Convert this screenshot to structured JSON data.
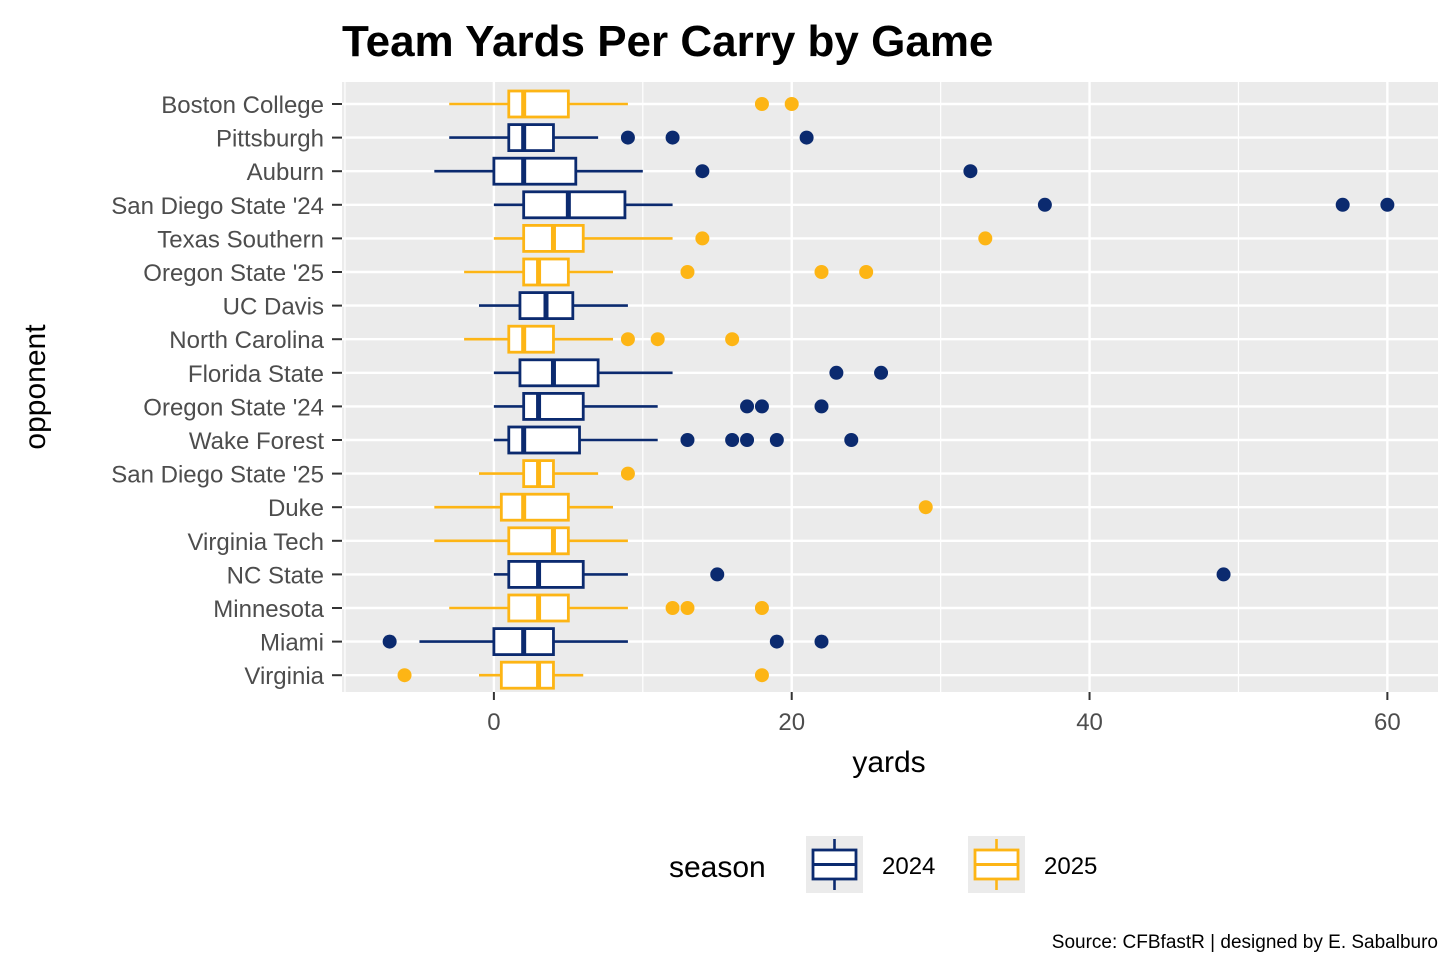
{
  "chart_data": {
    "type": "boxplot",
    "title": "Team Yards Per Carry by Game",
    "xlabel": "yards",
    "ylabel": "opponent",
    "xlim": [
      -10.2,
      63.4
    ],
    "x_ticks": [
      0,
      20,
      40,
      60
    ],
    "grid": true,
    "legend": {
      "title": "season",
      "placement": "bottom",
      "entries": [
        "2024",
        "2025"
      ]
    },
    "colors": {
      "2024": "#0B2A6F",
      "2025": "#FDB515",
      "panel": "#EBEBEB"
    },
    "caption": "Source: CFBfastR | designed by E. Sabalburo",
    "rows": [
      {
        "opponent": "Boston College",
        "season": "2025",
        "whisker_low": -3,
        "q1": 1,
        "median": 2,
        "q3": 5,
        "whisker_high": 9,
        "outliers": [
          18,
          20
        ]
      },
      {
        "opponent": "Pittsburgh",
        "season": "2024",
        "whisker_low": -3,
        "q1": 1,
        "median": 2,
        "q3": 4,
        "whisker_high": 7,
        "outliers": [
          9,
          12,
          21
        ]
      },
      {
        "opponent": "Auburn",
        "season": "2024",
        "whisker_low": -4,
        "q1": 0,
        "median": 2,
        "q3": 5.5,
        "whisker_high": 10,
        "outliers": [
          14,
          32
        ]
      },
      {
        "opponent": "San Diego State '24",
        "season": "2024",
        "whisker_low": 0,
        "q1": 2,
        "median": 5,
        "q3": 8.8,
        "whisker_high": 12,
        "outliers": [
          37,
          57,
          60
        ]
      },
      {
        "opponent": "Texas Southern",
        "season": "2025",
        "whisker_low": 0,
        "q1": 2,
        "median": 4,
        "q3": 6,
        "whisker_high": 12,
        "outliers": [
          14,
          33
        ]
      },
      {
        "opponent": "Oregon State '25",
        "season": "2025",
        "whisker_low": -2,
        "q1": 2,
        "median": 3,
        "q3": 5,
        "whisker_high": 8,
        "outliers": [
          13,
          22,
          25
        ]
      },
      {
        "opponent": "UC Davis",
        "season": "2024",
        "whisker_low": -1,
        "q1": 1.75,
        "median": 3.5,
        "q3": 5.3,
        "whisker_high": 9,
        "outliers": []
      },
      {
        "opponent": "North Carolina",
        "season": "2025",
        "whisker_low": -2,
        "q1": 1,
        "median": 2,
        "q3": 4,
        "whisker_high": 8,
        "outliers": [
          9,
          11,
          16
        ]
      },
      {
        "opponent": "Florida State",
        "season": "2024",
        "whisker_low": 0,
        "q1": 1.75,
        "median": 4,
        "q3": 7,
        "whisker_high": 12,
        "outliers": [
          23,
          26
        ]
      },
      {
        "opponent": "Oregon State '24",
        "season": "2024",
        "whisker_low": 0,
        "q1": 2,
        "median": 3,
        "q3": 6,
        "whisker_high": 11,
        "outliers": [
          17,
          18,
          22
        ]
      },
      {
        "opponent": "Wake Forest",
        "season": "2024",
        "whisker_low": 0,
        "q1": 1,
        "median": 2,
        "q3": 5.75,
        "whisker_high": 11,
        "outliers": [
          13,
          16,
          17,
          19,
          24
        ]
      },
      {
        "opponent": "San Diego State '25",
        "season": "2025",
        "whisker_low": -1,
        "q1": 2,
        "median": 3,
        "q3": 4,
        "whisker_high": 7,
        "outliers": [
          9
        ]
      },
      {
        "opponent": "Duke",
        "season": "2025",
        "whisker_low": -4,
        "q1": 0.5,
        "median": 2,
        "q3": 5,
        "whisker_high": 8,
        "outliers": [
          29
        ]
      },
      {
        "opponent": "Virginia Tech",
        "season": "2025",
        "whisker_low": -4,
        "q1": 1,
        "median": 4,
        "q3": 5,
        "whisker_high": 9,
        "outliers": []
      },
      {
        "opponent": "NC State",
        "season": "2024",
        "whisker_low": 0,
        "q1": 1,
        "median": 3,
        "q3": 6,
        "whisker_high": 9,
        "outliers": [
          15,
          49
        ]
      },
      {
        "opponent": "Minnesota",
        "season": "2025",
        "whisker_low": -3,
        "q1": 1,
        "median": 3,
        "q3": 5,
        "whisker_high": 9,
        "outliers": [
          12,
          13,
          18
        ]
      },
      {
        "opponent": "Miami",
        "season": "2024",
        "whisker_low": -5,
        "q1": 0,
        "median": 2,
        "q3": 4,
        "whisker_high": 9,
        "outliers": [
          -7,
          19,
          22
        ]
      },
      {
        "opponent": "Virginia",
        "season": "2025",
        "whisker_low": -1,
        "q1": 0.5,
        "median": 3,
        "q3": 4,
        "whisker_high": 6,
        "outliers": [
          -6,
          18
        ]
      }
    ]
  }
}
